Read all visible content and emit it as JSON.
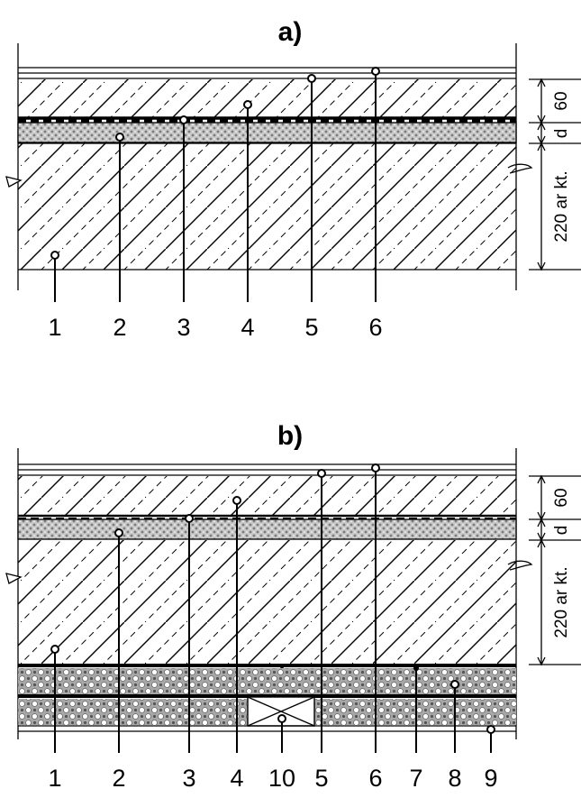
{
  "diagram_a": {
    "title": "a)",
    "labels": [
      "1",
      "2",
      "3",
      "4",
      "5",
      "6"
    ],
    "dims": {
      "top": "60",
      "middle": "d",
      "bottom": "220 ar kt."
    }
  },
  "diagram_b": {
    "title": "b)",
    "labels": [
      "1",
      "2",
      "3",
      "4",
      "10",
      "5",
      "6",
      "7",
      "8",
      "9"
    ],
    "dims": {
      "top": "60",
      "middle": "d",
      "bottom": "220 ar kt."
    }
  },
  "colors": {
    "ink": "#000000",
    "paper": "#ffffff",
    "insulation": "#bdbdbd"
  }
}
